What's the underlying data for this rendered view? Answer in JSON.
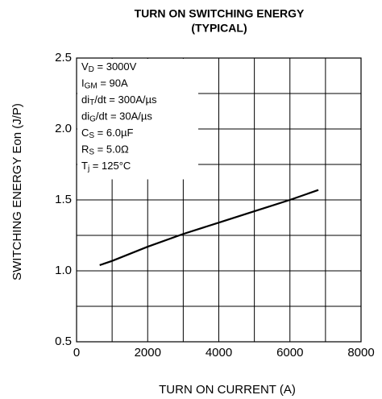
{
  "chart_data": {
    "type": "line",
    "title": [
      "TURN ON SWITCHING ENERGY",
      "(TYPICAL)"
    ],
    "xlabel": "TURN ON CURRENT  (A)",
    "ylabel": "SWITCHING ENERGY  Eon  (J/P)",
    "x": [
      650,
      1000,
      2000,
      3000,
      4000,
      5000,
      6000,
      6800
    ],
    "series": [
      {
        "color": "#000000",
        "values": [
          1.04,
          1.07,
          1.17,
          1.26,
          1.34,
          1.42,
          1.5,
          1.57
        ]
      }
    ],
    "xlim": [
      0,
      8000
    ],
    "xticks": [
      0,
      2000,
      4000,
      6000,
      8000
    ],
    "ylim": [
      0.5,
      2.5
    ],
    "yticks": [
      0.5,
      {
        "value": 1,
        "label": "1.0"
      },
      1.5,
      {
        "value": 2,
        "label": "2.0"
      },
      2.5
    ],
    "xminorticks": [
      1000,
      3000,
      5000,
      7000
    ],
    "yminorticks": [
      0.75,
      1.25,
      1.75,
      2.25
    ],
    "grid": true,
    "annotations": [
      [
        {
          "t": "V"
        },
        {
          "t": "D",
          "sub": true
        },
        {
          "t": " = 3000V"
        }
      ],
      [
        {
          "t": "I"
        },
        {
          "t": "GM",
          "sub": true
        },
        {
          "t": " = 90A"
        }
      ],
      [
        {
          "t": "di"
        },
        {
          "t": "T",
          "sub": true
        },
        {
          "t": "/dt = 300A/µs"
        }
      ],
      [
        {
          "t": "di"
        },
        {
          "t": "G",
          "sub": true
        },
        {
          "t": "/dt = 30A/µs"
        }
      ],
      [
        {
          "t": "C"
        },
        {
          "t": "S",
          "sub": true
        },
        {
          "t": " = 6.0µF"
        }
      ],
      [
        {
          "t": "R"
        },
        {
          "t": "S",
          "sub": true
        },
        {
          "t": " = 5.0Ω"
        }
      ],
      [
        {
          "t": "T"
        },
        {
          "t": "j",
          "sub": true
        },
        {
          "t": " = 125°C"
        }
      ]
    ]
  }
}
